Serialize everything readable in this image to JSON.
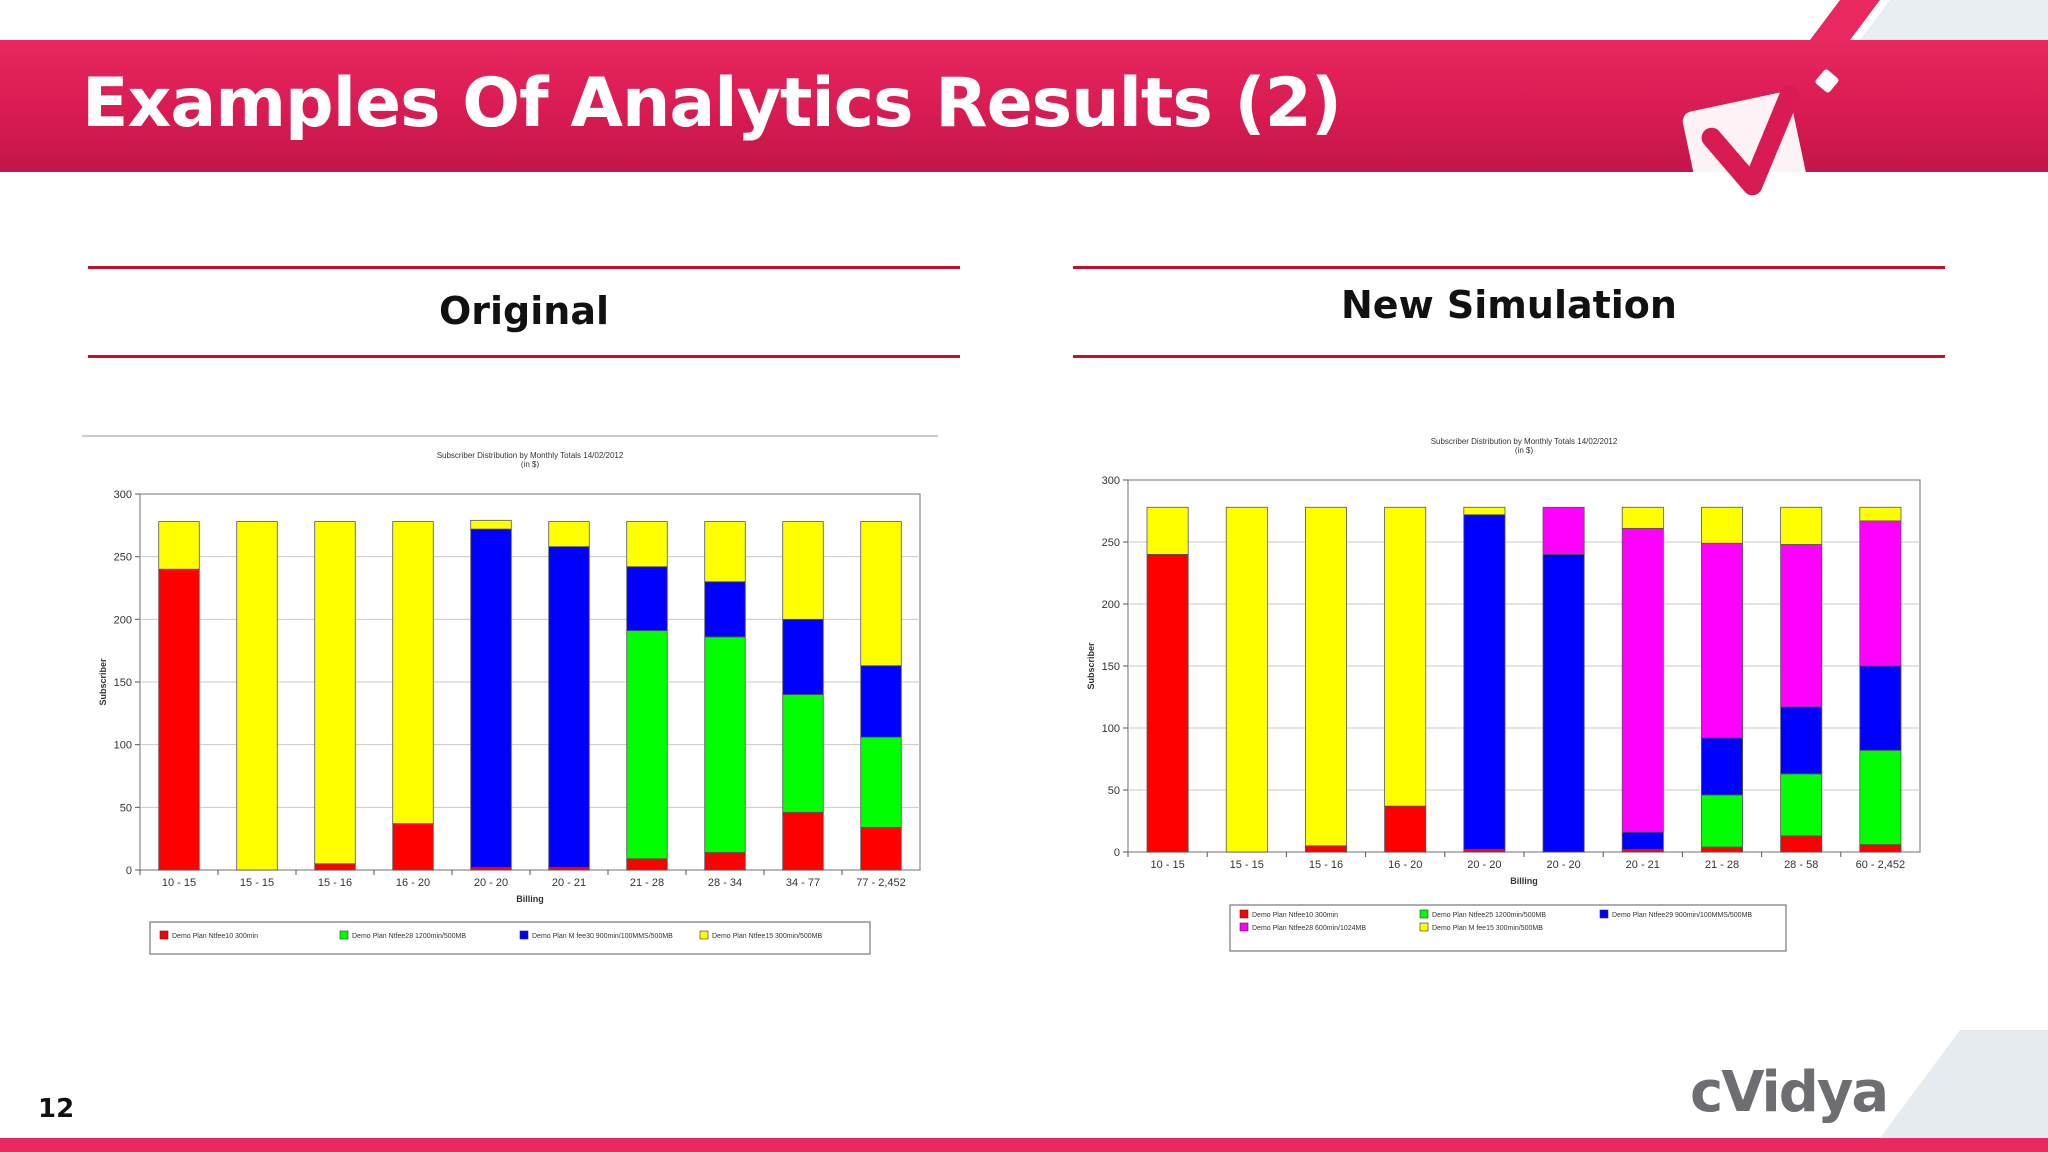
{
  "slide": {
    "title": "Examples Of Analytics Results (2)",
    "page_number": "12",
    "logo_text": "cVidya",
    "accent_color": "#e8285f"
  },
  "columns": {
    "left_heading": "Original",
    "right_heading": "New Simulation"
  },
  "chart_data": [
    {
      "type": "bar",
      "stacked": true,
      "title": "Subscriber Distribution by Monthly Totals 14/02/2012",
      "subtitle": "(in $)",
      "xlabel": "Billing",
      "ylabel": "Subscriber",
      "ylim": [
        0,
        300
      ],
      "yticks": [
        0,
        50,
        100,
        150,
        200,
        250,
        300
      ],
      "grid": true,
      "legend_position": "bottom",
      "categories": [
        "10 - 15",
        "15 - 15",
        "15 - 16",
        "16 - 20",
        "20 - 20",
        "20 - 21",
        "21 - 28",
        "28 - 34",
        "34 - 77",
        "77 - 2,452"
      ],
      "series": [
        {
          "name": "Demo Plan Ntfee10 300min",
          "color": "#ff0000",
          "values": [
            240,
            0,
            5,
            37,
            2,
            2,
            9,
            14,
            46,
            34
          ]
        },
        {
          "name": "Demo Plan Ntfee28 1200min/500MB",
          "color": "#00ff00",
          "values": [
            0,
            0,
            0,
            0,
            0,
            0,
            182,
            172,
            94,
            72
          ]
        },
        {
          "name": "Demo Plan M fee30 900min/100MMS/500MB",
          "color": "#0000ff",
          "values": [
            0,
            0,
            0,
            0,
            270,
            256,
            51,
            44,
            60,
            57
          ]
        },
        {
          "name": "Demo Plan Ntfee15 300min/500MB",
          "color": "#ffff00",
          "values": [
            38,
            278,
            273,
            241,
            7,
            20,
            36,
            48,
            78,
            115
          ]
        }
      ]
    },
    {
      "type": "bar",
      "stacked": true,
      "title": "Subscriber Distribution by Monthly Totals 14/02/2012",
      "subtitle": "(in $)",
      "xlabel": "Billing",
      "ylabel": "Subscriber",
      "ylim": [
        0,
        300
      ],
      "yticks": [
        0,
        50,
        100,
        150,
        200,
        250,
        300
      ],
      "grid": true,
      "legend_position": "bottom",
      "categories": [
        "10 - 15",
        "15 - 15",
        "15 - 16",
        "16 - 20",
        "20 - 20",
        "20 - 20",
        "20 - 21",
        "21 - 28",
        "28 - 58",
        "60 - 2,452"
      ],
      "series": [
        {
          "name": "Demo Plan Ntfee10 300min",
          "color": "#ff0000",
          "values": [
            240,
            0,
            5,
            37,
            2,
            0,
            2,
            4,
            13,
            6
          ]
        },
        {
          "name": "Demo Plan Ntfee25 1200min/500MB",
          "color": "#00ff00",
          "values": [
            0,
            0,
            0,
            0,
            0,
            0,
            0,
            42,
            50,
            76
          ]
        },
        {
          "name": "Demo Plan Ntfee29 900min/100MMS/500MB",
          "color": "#0000ff",
          "values": [
            0,
            0,
            0,
            0,
            270,
            240,
            14,
            46,
            54,
            68
          ]
        },
        {
          "name": "Demo Plan Ntfee28 600min/1024MB",
          "color": "#ff00ff",
          "values": [
            0,
            0,
            0,
            0,
            0,
            38,
            245,
            157,
            131,
            117
          ]
        },
        {
          "name": "Demo Plan M fee15 300min/500MB",
          "color": "#ffff00",
          "values": [
            38,
            278,
            273,
            241,
            6,
            0,
            17,
            29,
            30,
            11
          ]
        }
      ]
    }
  ]
}
